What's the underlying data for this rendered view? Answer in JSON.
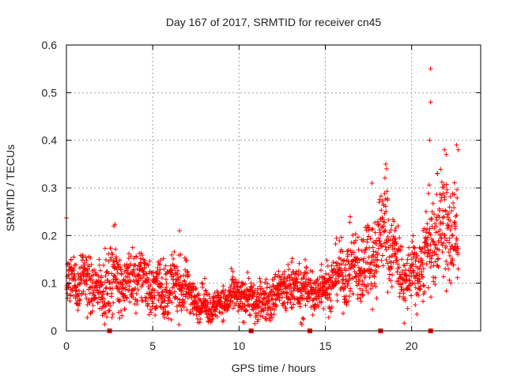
{
  "colors": {
    "series": "#ff0000",
    "grid": "#a0a0a0",
    "axis": "#000000",
    "text": "#222222"
  },
  "chart_data": {
    "type": "scatter",
    "title": "Day 167 of 2017, SRMTID for receiver cn45",
    "xlabel": "GPS time / hours",
    "ylabel": "SRMTID / TECUs",
    "xlim": [
      0,
      24
    ],
    "ylim": [
      0,
      0.6
    ],
    "xticks": [
      0,
      5,
      10,
      15,
      20
    ],
    "yticks": [
      0,
      0.1,
      0.2,
      0.3,
      0.4,
      0.5,
      0.6
    ],
    "xtick_labels": [
      "0",
      "5",
      "10",
      "15",
      "20"
    ],
    "ytick_labels": [
      "0",
      "0.1",
      "0.2",
      "0.3",
      "0.4",
      "0.5",
      "0.6"
    ],
    "grid": true,
    "marker": "+",
    "series": [
      {
        "name": "SRMTID",
        "x_range": [
          0,
          22.7
        ],
        "n_points": 2200,
        "envelope": [
          {
            "x": 0.0,
            "mean": 0.095,
            "spread": 0.04
          },
          {
            "x": 1.0,
            "mean": 0.1,
            "spread": 0.045
          },
          {
            "x": 2.0,
            "mean": 0.09,
            "spread": 0.045
          },
          {
            "x": 2.7,
            "mean": 0.12,
            "spread": 0.06
          },
          {
            "x": 3.5,
            "mean": 0.09,
            "spread": 0.045
          },
          {
            "x": 4.3,
            "mean": 0.11,
            "spread": 0.055
          },
          {
            "x": 5.0,
            "mean": 0.1,
            "spread": 0.05
          },
          {
            "x": 6.0,
            "mean": 0.09,
            "spread": 0.05
          },
          {
            "x": 6.7,
            "mean": 0.09,
            "spread": 0.05
          },
          {
            "x": 7.5,
            "mean": 0.065,
            "spread": 0.03
          },
          {
            "x": 8.5,
            "mean": 0.055,
            "spread": 0.025
          },
          {
            "x": 9.5,
            "mean": 0.065,
            "spread": 0.03
          },
          {
            "x": 10.5,
            "mean": 0.07,
            "spread": 0.035
          },
          {
            "x": 11.5,
            "mean": 0.065,
            "spread": 0.035
          },
          {
            "x": 12.5,
            "mean": 0.08,
            "spread": 0.04
          },
          {
            "x": 13.5,
            "mean": 0.09,
            "spread": 0.045
          },
          {
            "x": 14.5,
            "mean": 0.09,
            "spread": 0.04
          },
          {
            "x": 15.5,
            "mean": 0.1,
            "spread": 0.045
          },
          {
            "x": 16.5,
            "mean": 0.13,
            "spread": 0.06
          },
          {
            "x": 17.5,
            "mean": 0.16,
            "spread": 0.07
          },
          {
            "x": 18.5,
            "mean": 0.2,
            "spread": 0.08
          },
          {
            "x": 19.5,
            "mean": 0.11,
            "spread": 0.05
          },
          {
            "x": 20.5,
            "mean": 0.14,
            "spread": 0.06
          },
          {
            "x": 21.5,
            "mean": 0.2,
            "spread": 0.09
          },
          {
            "x": 22.7,
            "mean": 0.2,
            "spread": 0.09
          }
        ],
        "notable_points": [
          {
            "x": 18.5,
            "y": 0.35
          },
          {
            "x": 18.55,
            "y": 0.34
          },
          {
            "x": 21.1,
            "y": 0.55
          },
          {
            "x": 21.1,
            "y": 0.48
          },
          {
            "x": 21.05,
            "y": 0.4
          },
          {
            "x": 21.5,
            "y": 0.33
          },
          {
            "x": 21.9,
            "y": 0.38
          },
          {
            "x": 22.6,
            "y": 0.39
          },
          {
            "x": 22.7,
            "y": 0.38
          },
          {
            "x": 17.7,
            "y": 0.31
          },
          {
            "x": 22.0,
            "y": 0.37
          },
          {
            "x": 2.75,
            "y": 0.22
          },
          {
            "x": 6.55,
            "y": 0.21
          }
        ]
      }
    ],
    "gap_markers": {
      "description": "small filled squares on the x axis",
      "x": [
        2.5,
        10.7,
        14.1,
        18.2,
        21.1
      ]
    }
  }
}
